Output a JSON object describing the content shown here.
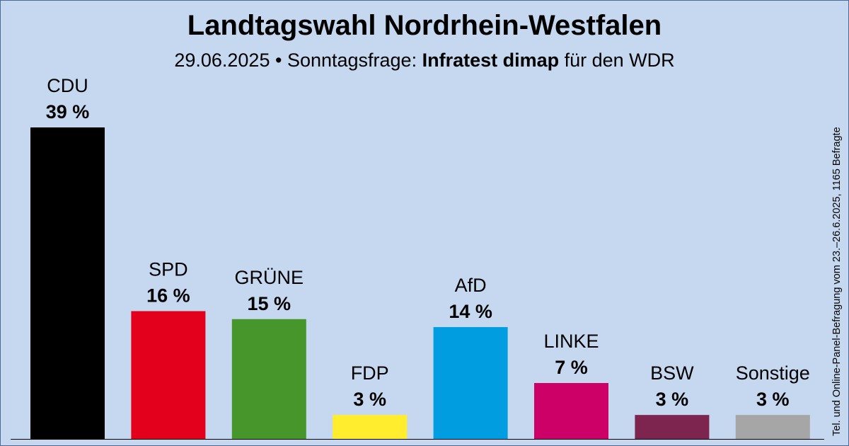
{
  "title": "Landtagswahl Nordrhein-Westfalen",
  "subtitle": {
    "date": "29.06.2025",
    "separator": " • ",
    "prefix": "Sonntagsfrage: ",
    "institute": "Infratest dimap",
    "suffix": " für den WDR"
  },
  "side_note": "Tel. und Online-Panel-Befragung vom 23.–26.6.2025, 1165 Befragte",
  "chart_data": {
    "type": "bar",
    "title": "Landtagswahl Nordrhein-Westfalen",
    "ylim": [
      0,
      39
    ],
    "grid": false,
    "categories": [
      "CDU",
      "SPD",
      "GRÜNE",
      "FDP",
      "AfD",
      "LINKE",
      "BSW",
      "Sonstige"
    ],
    "values": [
      39,
      16,
      15,
      3,
      14,
      7,
      3,
      3
    ],
    "value_labels": [
      "39 %",
      "16 %",
      "15 %",
      "3 %",
      "14 %",
      "7 %",
      "3 %",
      "3 %"
    ],
    "colors": [
      "#000000",
      "#e3001c",
      "#46962b",
      "#ffed2e",
      "#009ee0",
      "#cc0066",
      "#7d254f",
      "#a6a6a6"
    ]
  }
}
